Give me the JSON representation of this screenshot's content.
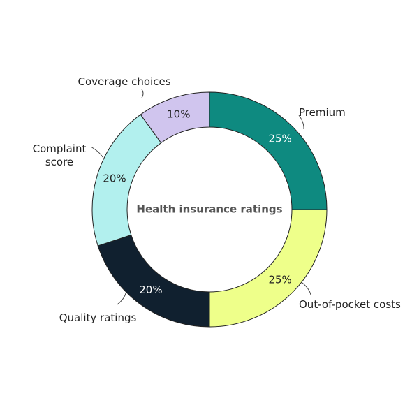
{
  "chart_data": {
    "type": "donut",
    "title": "Health insurance ratings",
    "categories": [
      "Premium",
      "Out-of-pocket costs",
      "Quality ratings",
      "Complaint score",
      "Coverage choices"
    ],
    "values": [
      25,
      25,
      20,
      20,
      10
    ],
    "value_labels": [
      "25%",
      "25%",
      "20%",
      "20%",
      "10%"
    ],
    "colors": [
      "#0e8a80",
      "#eeff8a",
      "#10202f",
      "#b2f0ee",
      "#d0c5ee"
    ]
  }
}
